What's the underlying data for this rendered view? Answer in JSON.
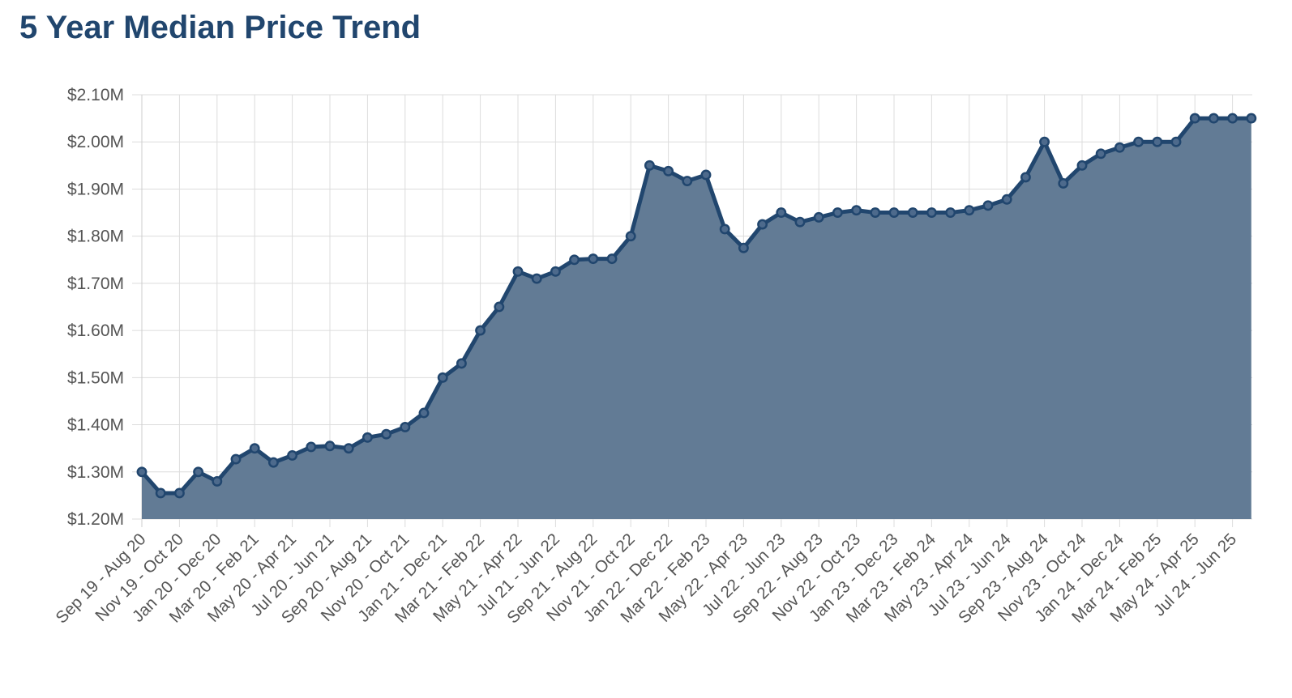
{
  "title": "5 Year Median Price Trend",
  "colors": {
    "title": "#21466e",
    "line": "#21466e",
    "area": "#5f7893",
    "grid": "#dcdcdc",
    "tick": "#555555"
  },
  "chart_data": {
    "type": "area",
    "title": "5 Year Median Price Trend",
    "xlabel": "",
    "ylabel": "",
    "ylim": [
      1200000,
      2100000
    ],
    "grid": true,
    "y_ticks": [
      "$1.20M",
      "$1.30M",
      "$1.40M",
      "$1.50M",
      "$1.60M",
      "$1.70M",
      "$1.80M",
      "$1.90M",
      "$2.00M",
      "$2.10M"
    ],
    "x_tick_labels": [
      "Sep 19 - Aug 20",
      "Nov 19 - Oct 20",
      "Jan 20 - Dec 20",
      "Mar 20 - Feb 21",
      "May 20 - Apr 21",
      "Jul 20 - Jun 21",
      "Sep 20 - Aug 21",
      "Nov 20 - Oct 21",
      "Jan 21 - Dec 21",
      "Mar 21 - Feb 22",
      "May 21 - Apr 22",
      "Jul 21 - Jun 22",
      "Sep 21 - Aug 22",
      "Nov 21 - Oct 22",
      "Jan 22 - Dec 22",
      "Mar 22 - Feb 23",
      "May 22 - Apr 23",
      "Jul 22 - Jun 23",
      "Sep 22 - Aug 23",
      "Nov 22 - Oct 23",
      "Jan 23 - Dec 23",
      "Mar 23 - Feb 24",
      "May 23 - Apr 24",
      "Jul 23 - Jun 24",
      "Sep 23 - Aug 24",
      "Nov 23 - Oct 24",
      "Jan 24 - Dec 24",
      "Mar 24 - Feb 25",
      "May 24 - Apr 25",
      "Jul 24 - Jun 25"
    ],
    "series": [
      {
        "values": [
          1300000,
          1255000,
          1255000,
          1300000,
          1280000,
          1327000,
          1350000,
          1320000,
          1335000,
          1353000,
          1355000,
          1350000,
          1373000,
          1380000,
          1395000,
          1425000,
          1500000,
          1530000,
          1600000,
          1650000,
          1725000,
          1710000,
          1725000,
          1750000,
          1752000,
          1752000,
          1800000,
          1950000,
          1938000,
          1917000,
          1930000,
          1815000,
          1775000,
          1825000,
          1850000,
          1830000,
          1840000,
          1850000,
          1855000,
          1850000,
          1850000,
          1850000,
          1850000,
          1850000,
          1855000,
          1865000,
          1878000,
          1925000,
          2000000,
          1912000,
          1950000,
          1975000,
          1988000,
          2000000,
          2000000,
          2000000,
          2050000,
          2050000,
          2050000,
          2050000
        ]
      }
    ]
  }
}
